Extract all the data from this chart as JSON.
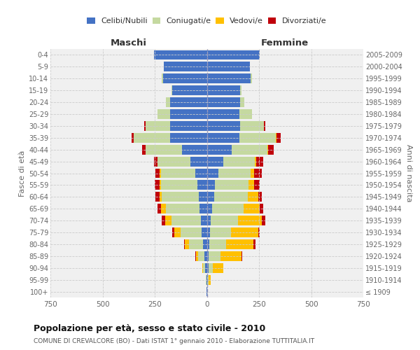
{
  "age_groups": [
    "100+",
    "95-99",
    "90-94",
    "85-89",
    "80-84",
    "75-79",
    "70-74",
    "65-69",
    "60-64",
    "55-59",
    "50-54",
    "45-49",
    "40-44",
    "35-39",
    "30-34",
    "25-29",
    "20-24",
    "15-19",
    "10-14",
    "5-9",
    "0-4"
  ],
  "birth_years": [
    "≤ 1909",
    "1910-1914",
    "1915-1919",
    "1920-1924",
    "1925-1929",
    "1930-1934",
    "1935-1939",
    "1940-1944",
    "1945-1949",
    "1950-1954",
    "1955-1959",
    "1960-1964",
    "1965-1969",
    "1970-1974",
    "1975-1979",
    "1980-1984",
    "1985-1989",
    "1990-1994",
    "1995-1999",
    "2000-2004",
    "2005-2009"
  ],
  "maschi": {
    "celibi": [
      1,
      3,
      8,
      12,
      20,
      25,
      30,
      35,
      40,
      45,
      55,
      80,
      120,
      175,
      175,
      175,
      175,
      165,
      210,
      205,
      255
    ],
    "coniugati": [
      0,
      2,
      10,
      30,
      65,
      100,
      140,
      160,
      175,
      175,
      165,
      155,
      175,
      175,
      120,
      60,
      20,
      5,
      5,
      0,
      0
    ],
    "vedovi": [
      0,
      0,
      5,
      10,
      20,
      30,
      30,
      25,
      10,
      5,
      5,
      0,
      0,
      0,
      0,
      0,
      0,
      0,
      0,
      0,
      0
    ],
    "divorziati": [
      0,
      0,
      0,
      5,
      5,
      10,
      15,
      15,
      20,
      25,
      20,
      20,
      15,
      10,
      5,
      0,
      0,
      0,
      0,
      0,
      0
    ]
  },
  "femmine": {
    "nubili": [
      1,
      3,
      8,
      10,
      12,
      15,
      20,
      25,
      35,
      40,
      55,
      80,
      120,
      155,
      160,
      155,
      160,
      160,
      210,
      205,
      255
    ],
    "coniugate": [
      0,
      5,
      20,
      55,
      80,
      100,
      130,
      150,
      160,
      160,
      155,
      150,
      170,
      175,
      115,
      60,
      20,
      5,
      5,
      0,
      0
    ],
    "vedove": [
      0,
      10,
      50,
      100,
      130,
      130,
      115,
      80,
      50,
      25,
      15,
      5,
      5,
      5,
      0,
      0,
      0,
      0,
      0,
      0,
      0
    ],
    "divorziate": [
      0,
      0,
      0,
      5,
      10,
      10,
      15,
      15,
      20,
      30,
      40,
      35,
      25,
      20,
      5,
      0,
      0,
      0,
      0,
      0,
      0
    ]
  },
  "color_celibi": "#4472c4",
  "color_coniugati": "#c5d9a0",
  "color_vedovi": "#ffc000",
  "color_divorziati": "#c0000b",
  "xlim": 750,
  "title": "Popolazione per età, sesso e stato civile - 2010",
  "subtitle": "COMUNE DI CREVALCORE (BO) - Dati ISTAT 1° gennaio 2010 - Elaborazione TUTTITALIA.IT",
  "ylabel_left": "Fasce di età",
  "ylabel_right": "Anni di nascita",
  "xlabel_maschi": "Maschi",
  "xlabel_femmine": "Femmine",
  "bg_color": "#ffffff",
  "plot_bg": "#f0f0f0",
  "grid_color": "#cccccc"
}
